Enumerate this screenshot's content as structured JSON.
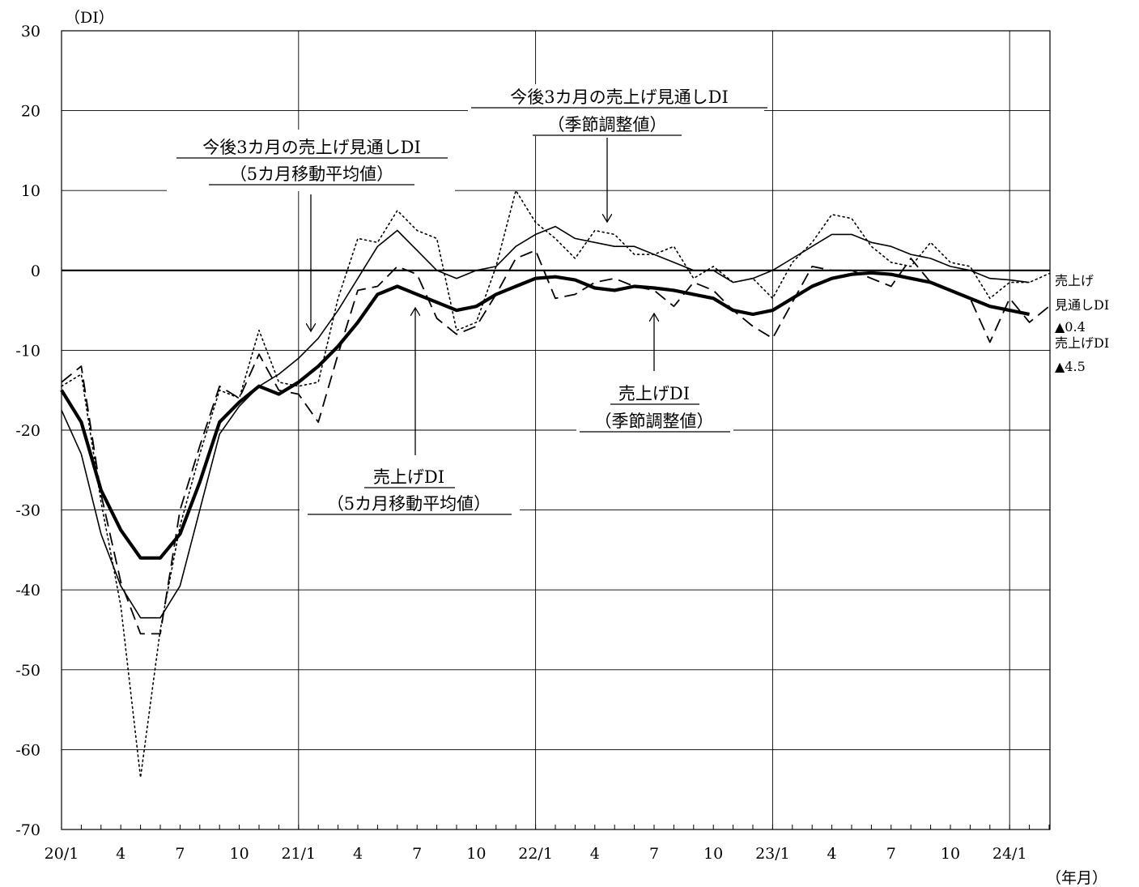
{
  "chart_data": {
    "type": "line",
    "ylabel": "（DI）",
    "xlabel": "（年月）",
    "ylim": [
      -70,
      30
    ],
    "y_ticks": [
      30,
      20,
      10,
      0,
      -10,
      -20,
      -30,
      -40,
      -50,
      -60,
      -70
    ],
    "x_ticks": [
      {
        "index": 0,
        "label": "20/1"
      },
      {
        "index": 3,
        "label": "4"
      },
      {
        "index": 6,
        "label": "7"
      },
      {
        "index": 9,
        "label": "10"
      },
      {
        "index": 12,
        "label": "21/1"
      },
      {
        "index": 15,
        "label": "4"
      },
      {
        "index": 18,
        "label": "7"
      },
      {
        "index": 21,
        "label": "10"
      },
      {
        "index": 24,
        "label": "22/1"
      },
      {
        "index": 27,
        "label": "4"
      },
      {
        "index": 30,
        "label": "7"
      },
      {
        "index": 33,
        "label": "10"
      },
      {
        "index": 36,
        "label": "23/1"
      },
      {
        "index": 39,
        "label": "4"
      },
      {
        "index": 42,
        "label": "7"
      },
      {
        "index": 45,
        "label": "10"
      },
      {
        "index": 48,
        "label": "24/1"
      }
    ],
    "x_count": 51,
    "grid": true,
    "series": [
      {
        "style": "dotted",
        "values": [
          -14.5,
          -13,
          -29,
          -42,
          -63.5,
          -45,
          -32,
          -23,
          -15,
          -16,
          -7.5,
          -14,
          -14.5,
          -14,
          -3.5,
          4,
          3.5,
          7.5,
          5,
          4,
          -7.5,
          -6.5,
          0.5,
          10,
          6,
          4,
          1.5,
          5,
          4.5,
          2,
          2,
          3,
          -1,
          0.5,
          -1.5,
          -1,
          -3.5,
          1,
          3.5,
          7,
          6.5,
          3,
          1,
          0.5,
          3.5,
          1,
          0.5,
          -3.5,
          -1.5,
          -1.5,
          -0.4
        ]
      },
      {
        "style": "solid-thin",
        "values": [
          -17.5,
          -23,
          -33,
          -39.5,
          -43.5,
          -43.5,
          -39.5,
          -30,
          -20.5,
          -17,
          -14.5,
          -13,
          -11,
          -8.5,
          -5,
          -1,
          3,
          5,
          2.5,
          0,
          -1,
          0,
          0.5,
          3,
          4.5,
          5.5,
          4,
          3.5,
          3,
          3,
          2,
          1,
          0,
          0,
          -1.5,
          -1,
          0,
          1.5,
          3,
          4.5,
          4.5,
          3.5,
          3,
          2,
          1.5,
          0.5,
          0,
          -1,
          -1.2,
          -1.5
        ]
      },
      {
        "style": "dashed",
        "values": [
          -14,
          -12,
          -28,
          -39,
          -45.5,
          -45.5,
          -30,
          -22,
          -14.5,
          -16,
          -10.5,
          -15,
          -15.5,
          -19,
          -10.5,
          -2.5,
          -2,
          0.5,
          -0.5,
          -6,
          -8,
          -7,
          -3,
          1.5,
          2.5,
          -3.5,
          -3,
          -1.5,
          -1,
          -2,
          -2.5,
          -4.5,
          -1.5,
          -2.5,
          -5,
          -7,
          -8.5,
          -4,
          0.5,
          0,
          0,
          -1,
          -2,
          1.5,
          -1.5,
          -2.5,
          -3.5,
          -9,
          -3.5,
          -6.5,
          -4.5
        ]
      },
      {
        "style": "solid-bold",
        "values": [
          -15,
          -19,
          -27.5,
          -32.5,
          -36,
          -36,
          -33,
          -26.5,
          -19,
          -16.5,
          -14.5,
          -15.5,
          -14,
          -12,
          -9.5,
          -6.5,
          -3,
          -2,
          -3,
          -4,
          -5,
          -4.5,
          -3,
          -2,
          -1,
          -0.8,
          -1.2,
          -2.2,
          -2.5,
          -2,
          -2.2,
          -2.5,
          -3,
          -3.5,
          -5,
          -5.5,
          -5,
          -3.5,
          -2,
          -1,
          -0.5,
          -0.3,
          -0.5,
          -1,
          -1.5,
          -2.5,
          -3.5,
          -4.5,
          -5,
          -5.5
        ]
      }
    ],
    "annotations": {
      "expect_sa": {
        "line1": "今後3カ月の売上げ見通しDI",
        "line2": "（季節調整値）"
      },
      "expect_ma": {
        "line1": "今後3カ月の売上げ見通しDI",
        "line2": "（5カ月移動平均値）"
      },
      "sales_sa": {
        "line1": "売上げDI",
        "line2": "（季節調整値）"
      },
      "sales_ma": {
        "line1": "売上げDI",
        "line2": "（5カ月移動平均値）"
      }
    },
    "side_labels": {
      "expect_title_1": "売上げ",
      "expect_title_2": "見通しDI",
      "expect_value": "▲0.4",
      "sales_title": "売上げDI",
      "sales_value": "▲4.5"
    }
  }
}
